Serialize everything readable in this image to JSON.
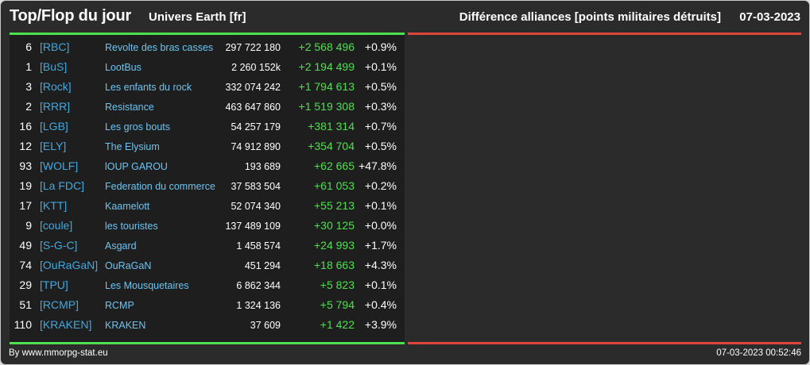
{
  "header": {
    "title": "Top/Flop du jour",
    "universe": "Univers Earth [fr]",
    "subtitle": "Différence alliances [points militaires détruits]",
    "date": "07-03-2023"
  },
  "colors": {
    "positive": "#4ee04e",
    "negative": "#e0453c",
    "tag": "#3fa9e0",
    "name": "#6cc4f0"
  },
  "rows": [
    {
      "rank": "6",
      "tag": "[RBC]",
      "name": "Revolte des bras casses",
      "points": "297 722 180",
      "diff": "+2 568 496",
      "pct": "+0.9%"
    },
    {
      "rank": "1",
      "tag": "[BuS]",
      "name": "LootBus",
      "points": "2 260 152k",
      "diff": "+2 194 499",
      "pct": "+0.1%"
    },
    {
      "rank": "3",
      "tag": "[Rock]",
      "name": "Les enfants du rock",
      "points": "332 074 242",
      "diff": "+1 794 613",
      "pct": "+0.5%"
    },
    {
      "rank": "2",
      "tag": "[RRR]",
      "name": "Resistance",
      "points": "463 647 860",
      "diff": "+1 519 308",
      "pct": "+0.3%"
    },
    {
      "rank": "16",
      "tag": "[LGB]",
      "name": "Les gros bouts",
      "points": "54 257 179",
      "diff": "+381 314",
      "pct": "+0.7%"
    },
    {
      "rank": "12",
      "tag": "[ELY]",
      "name": "The Elysium",
      "points": "74 912 890",
      "diff": "+354 704",
      "pct": "+0.5%"
    },
    {
      "rank": "93",
      "tag": "[WOLF]",
      "name": "lOUP GAROU",
      "points": "193 689",
      "diff": "+62 665",
      "pct": "+47.8%"
    },
    {
      "rank": "19",
      "tag": "[La FDC]",
      "name": "Federation du commerce",
      "points": "37 583 504",
      "diff": "+61 053",
      "pct": "+0.2%"
    },
    {
      "rank": "17",
      "tag": "[KTT]",
      "name": "Kaamelott",
      "points": "52 074 340",
      "diff": "+55 213",
      "pct": "+0.1%"
    },
    {
      "rank": "9",
      "tag": "[coule]",
      "name": "les touristes",
      "points": "137 489 109",
      "diff": "+30 125",
      "pct": "+0.0%"
    },
    {
      "rank": "49",
      "tag": "[S-G-C]",
      "name": "Asgard",
      "points": "1 458 574",
      "diff": "+24 993",
      "pct": "+1.7%"
    },
    {
      "rank": "74",
      "tag": "[OuRaGaN]",
      "name": "OuRaGaN",
      "points": "451 294",
      "diff": "+18 663",
      "pct": "+4.3%"
    },
    {
      "rank": "29",
      "tag": "[TPU]",
      "name": "Les Mousquetaires",
      "points": "6 862 344",
      "diff": "+5 823",
      "pct": "+0.1%"
    },
    {
      "rank": "51",
      "tag": "[RCMP]",
      "name": "RCMP",
      "points": "1 324 136",
      "diff": "+5 794",
      "pct": "+0.4%"
    },
    {
      "rank": "110",
      "tag": "[KRAKEN]",
      "name": "KRAKEN",
      "points": "37 609",
      "diff": "+1 422",
      "pct": "+3.9%"
    }
  ],
  "footer": {
    "credit": "By www.mmorpg-stat.eu",
    "timestamp": "07-03-2023 00:52:46"
  }
}
